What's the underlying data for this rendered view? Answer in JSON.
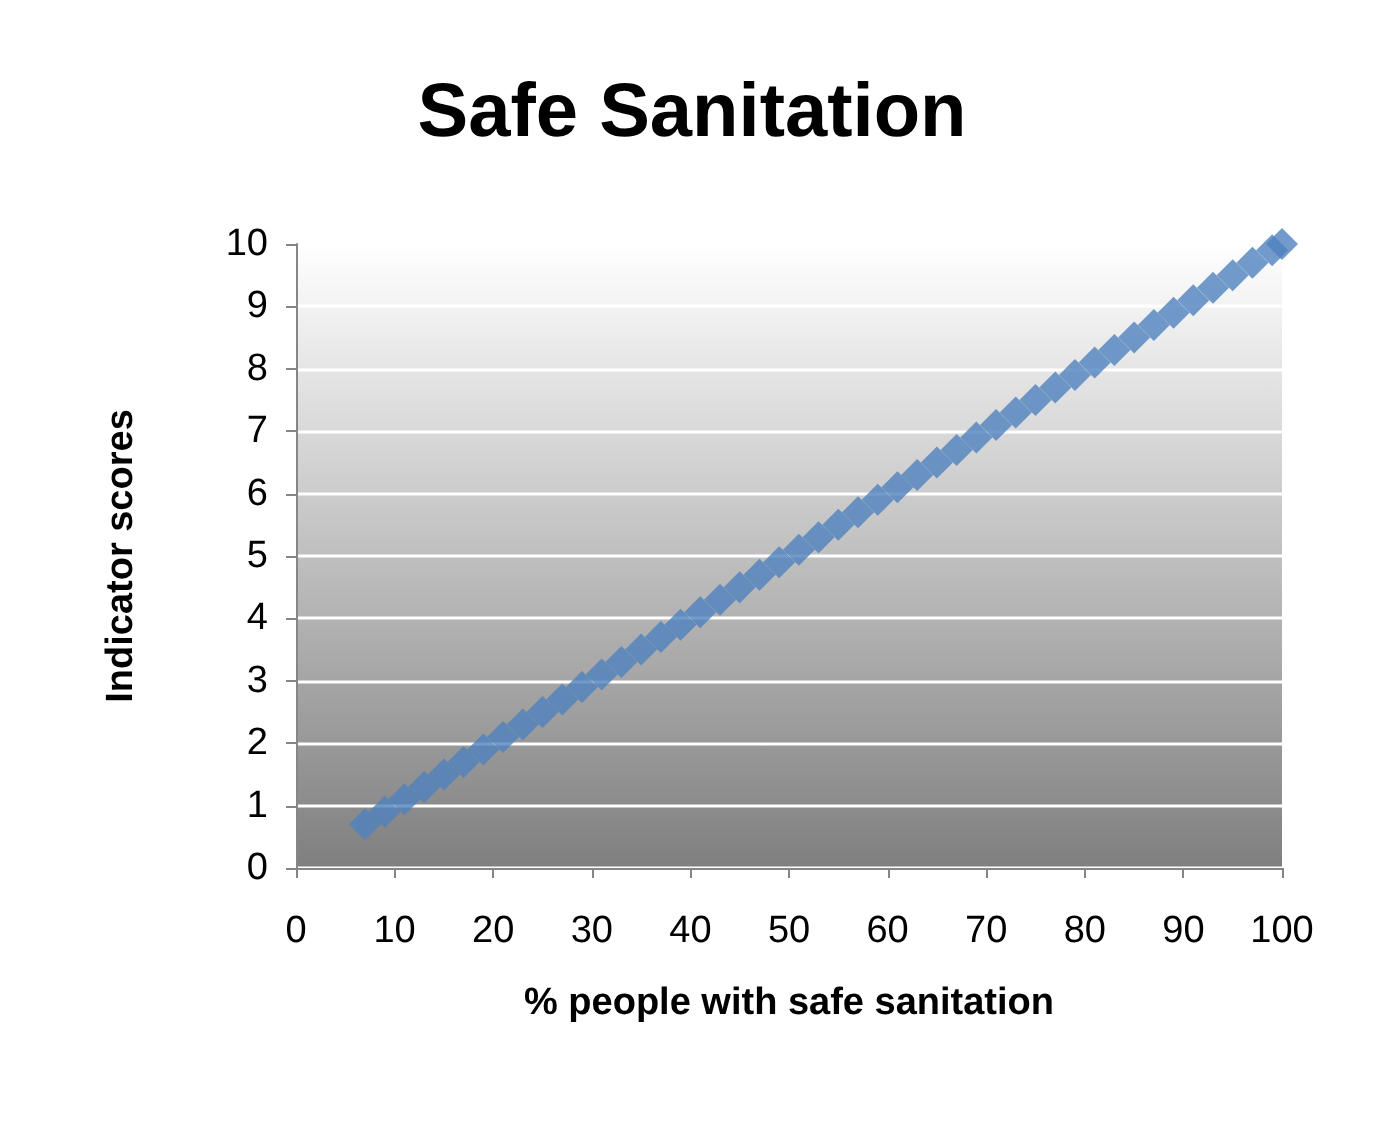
{
  "chart_data": {
    "type": "scatter",
    "title": "Safe Sanitation",
    "xlabel": "% people with safe sanitation",
    "ylabel": "Indicator scores",
    "x": [
      7,
      9,
      11,
      13,
      15,
      17,
      19,
      21,
      23,
      25,
      27,
      29,
      31,
      33,
      35,
      37,
      39,
      41,
      43,
      45,
      47,
      49,
      51,
      53,
      55,
      57,
      59,
      61,
      63,
      65,
      67,
      69,
      71,
      73,
      75,
      77,
      79,
      81,
      83,
      85,
      87,
      89,
      91,
      93,
      95,
      97,
      99,
      100
    ],
    "values": [
      0.7,
      0.9,
      1.1,
      1.3,
      1.5,
      1.7,
      1.9,
      2.1,
      2.3,
      2.5,
      2.7,
      2.9,
      3.1,
      3.3,
      3.5,
      3.7,
      3.9,
      4.1,
      4.3,
      4.5,
      4.7,
      4.9,
      5.1,
      5.3,
      5.5,
      5.7,
      5.9,
      6.1,
      6.3,
      6.5,
      6.7,
      6.9,
      7.1,
      7.3,
      7.5,
      7.7,
      7.9,
      8.1,
      8.3,
      8.5,
      8.7,
      8.9,
      9.1,
      9.3,
      9.5,
      9.7,
      9.9,
      10
    ],
    "color": "#4f81bd",
    "marker": "diamond",
    "xlim": [
      0,
      100
    ],
    "xticks": [
      0,
      10,
      20,
      30,
      40,
      50,
      60,
      70,
      80,
      90,
      100
    ],
    "ylim": [
      0,
      10
    ],
    "yticks": [
      0,
      1,
      2,
      3,
      4,
      5,
      6,
      7,
      8,
      9,
      10
    ],
    "grid": "y"
  }
}
